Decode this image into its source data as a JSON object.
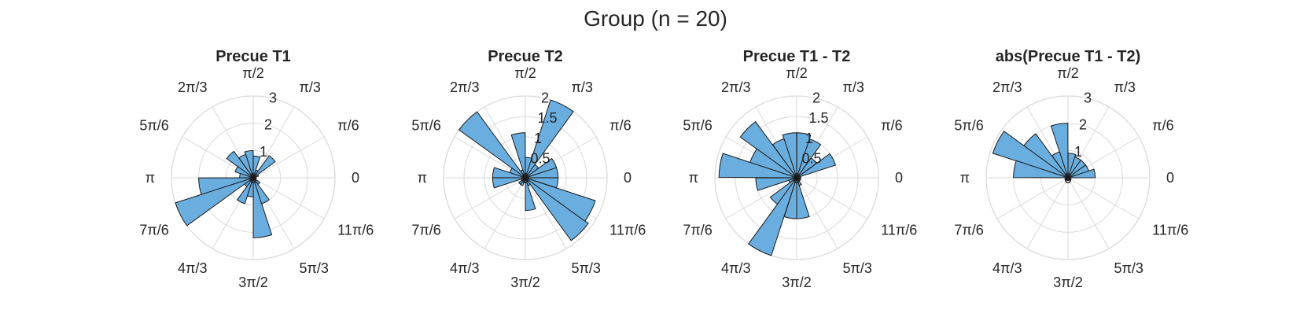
{
  "figure": {
    "title": "Group (n = 20)"
  },
  "colors": {
    "bar_fill": "#6aaee0",
    "bar_edge": "#1a1a1a",
    "grid": "#dadada",
    "text": "#262626"
  },
  "angle_tick_labels": [
    "0",
    "π/6",
    "π/3",
    "π/2",
    "2π/3",
    "5π/6",
    "π",
    "7π/6",
    "4π/3",
    "3π/2",
    "5π/3",
    "11π/6"
  ],
  "chart_data": [
    {
      "type": "bar",
      "subtype": "polar-histogram",
      "title": "Precue T1",
      "rlim": [
        0,
        3
      ],
      "rticks": [
        "1",
        "2",
        "3"
      ],
      "grid": true,
      "bin_centers_rad": [
        0.16,
        0.47,
        0.79,
        1.1,
        1.41,
        1.73,
        2.04,
        2.36,
        2.67,
        2.98,
        3.3,
        3.61,
        3.93,
        4.24,
        4.56,
        4.87,
        5.18,
        5.5,
        5.81,
        6.13
      ],
      "values": [
        0.1,
        0.2,
        1.0,
        0.3,
        0.8,
        1.0,
        0.9,
        1.2,
        0.7,
        0.5,
        2.0,
        3.0,
        0.4,
        1.0,
        0.7,
        2.2,
        1.0,
        0.3,
        0.1,
        0.1
      ]
    },
    {
      "type": "bar",
      "subtype": "polar-histogram",
      "title": "Precue T2",
      "rlim": [
        0,
        2
      ],
      "rticks": [
        "0.5",
        "1",
        "1.5",
        "2"
      ],
      "grid": true,
      "bin_centers_rad": [
        0.16,
        0.47,
        0.79,
        1.1,
        1.41,
        1.73,
        2.04,
        2.36,
        2.67,
        2.98,
        3.3,
        3.61,
        3.93,
        4.24,
        4.56,
        4.87,
        5.18,
        5.5,
        5.81,
        6.13
      ],
      "values": [
        0.8,
        0.8,
        0.4,
        2.2,
        0.5,
        1.1,
        0.2,
        2.0,
        0.4,
        0.8,
        0.8,
        0.1,
        0.2,
        0.2,
        0.1,
        0.8,
        0.2,
        1.9,
        1.8,
        0.8
      ]
    },
    {
      "type": "bar",
      "subtype": "polar-histogram",
      "title": "Precue T1 - T2",
      "rlim": [
        0,
        2
      ],
      "rticks": [
        "0.5",
        "1",
        "1.5",
        "2"
      ],
      "grid": true,
      "bin_centers_rad": [
        0.16,
        0.47,
        0.79,
        1.1,
        1.41,
        1.73,
        2.04,
        2.36,
        2.67,
        2.98,
        3.3,
        3.61,
        3.93,
        4.24,
        4.56,
        4.87,
        5.18,
        5.5,
        5.81,
        6.13
      ],
      "values": [
        0.1,
        1.0,
        0.6,
        1.0,
        1.1,
        1.1,
        1.0,
        1.7,
        1.2,
        1.9,
        1.0,
        0.2,
        0.8,
        2.0,
        1.0,
        1.0,
        0.2,
        0.1,
        0.1,
        0.1
      ]
    },
    {
      "type": "bar",
      "subtype": "polar-histogram",
      "title": "abs(Precue T1 - T2)",
      "rlim": [
        0,
        3
      ],
      "rticks": [
        "1",
        "2",
        "3"
      ],
      "grid": true,
      "bin_centers_rad": [
        0.16,
        0.47,
        0.79,
        1.1,
        1.41,
        1.73,
        2.04,
        2.36,
        2.67,
        2.98,
        3.3,
        3.61,
        3.93,
        4.24,
        4.56,
        4.87,
        5.18,
        5.5,
        5.81,
        6.13
      ],
      "values": [
        1.0,
        0.8,
        0.8,
        0.8,
        0.9,
        2.0,
        1.0,
        2.0,
        2.9,
        2.0,
        0.1,
        0.1,
        0.1,
        0.1,
        0.1,
        0.1,
        0.1,
        0.1,
        0.1,
        0.1
      ]
    }
  ]
}
